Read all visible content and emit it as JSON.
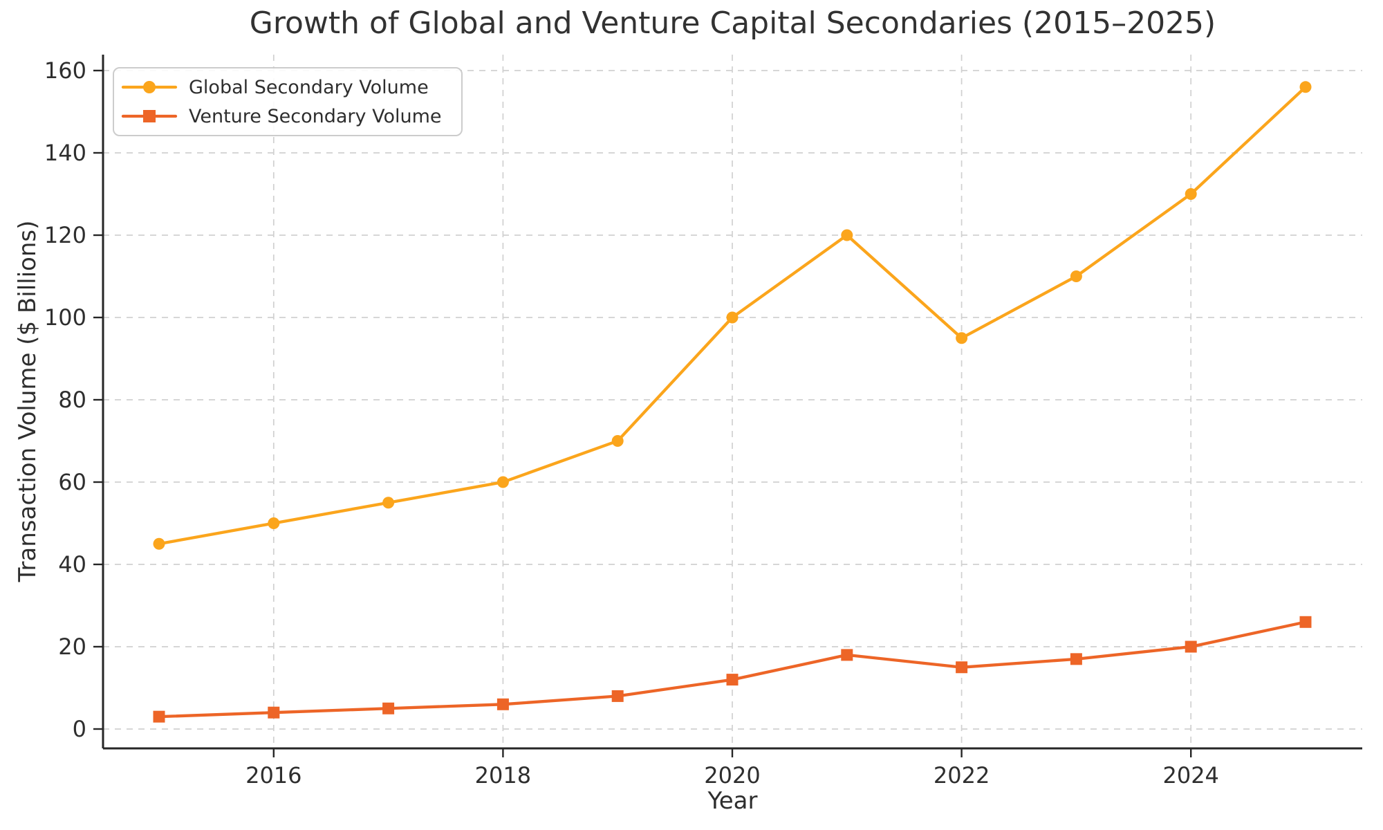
{
  "chart_data": {
    "type": "line",
    "title": "Growth of Global and Venture Capital Secondaries (2015–2025)",
    "xlabel": "Year",
    "ylabel": "Transaction Volume ($ Billions)",
    "x": [
      2015,
      2016,
      2017,
      2018,
      2019,
      2020,
      2021,
      2022,
      2023,
      2024,
      2025
    ],
    "series": [
      {
        "name": "Global Secondary Volume",
        "color": "#FBA51C",
        "marker": "circle",
        "values": [
          45,
          50,
          55,
          60,
          70,
          100,
          120,
          95,
          110,
          130,
          156
        ]
      },
      {
        "name": "Venture Secondary Volume",
        "color": "#ED6527",
        "marker": "square",
        "values": [
          3,
          4,
          5,
          6,
          8,
          12,
          18,
          15,
          17,
          20,
          26
        ]
      }
    ],
    "xticks": [
      2016,
      2018,
      2020,
      2022,
      2024
    ],
    "yticks": [
      0,
      20,
      40,
      60,
      80,
      100,
      120,
      140,
      160
    ],
    "ylim": [
      0,
      160
    ],
    "xlim": [
      2014.5,
      2025.5
    ],
    "grid": true,
    "legend_position": "upper-left",
    "axis_color": "#262626",
    "grid_color": "#d0d0d0",
    "background_color": "#ffffff"
  }
}
